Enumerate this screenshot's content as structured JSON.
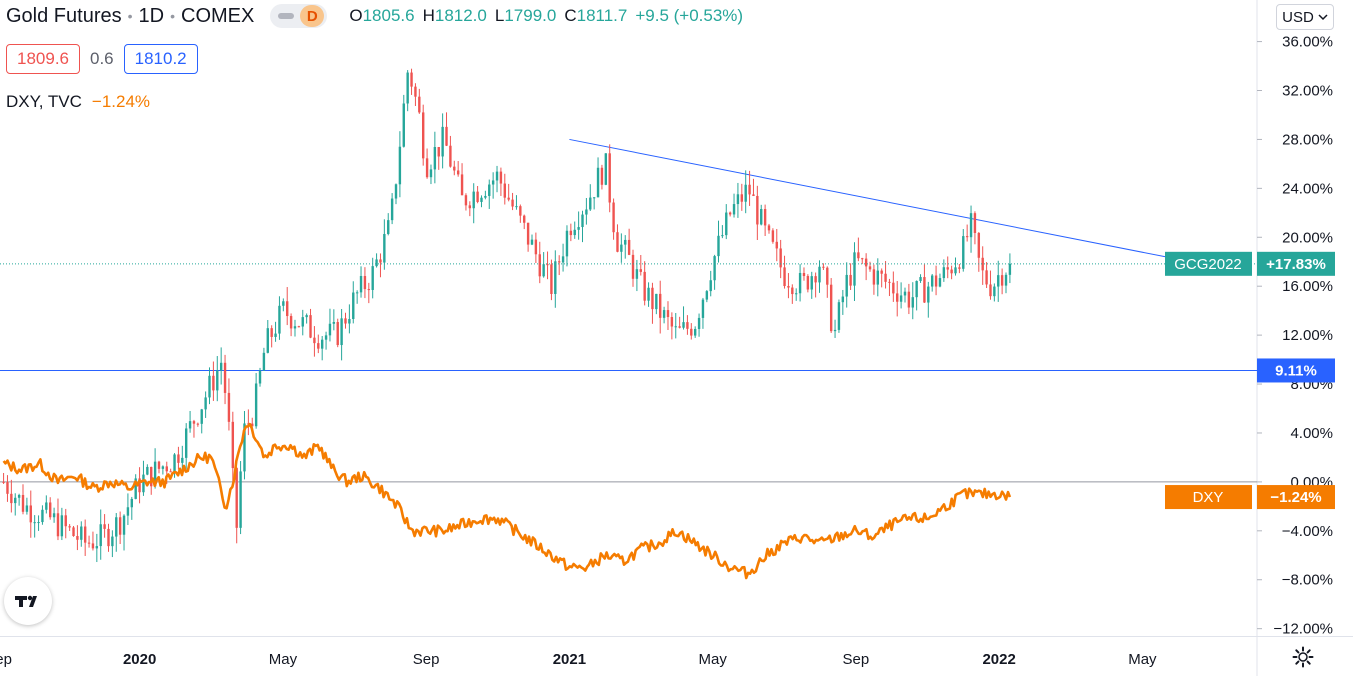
{
  "header": {
    "symbol_title": "Gold Futures",
    "interval": "1D",
    "exchange": "COMEX",
    "badge": "D",
    "ohlc": {
      "o_label": "O",
      "o": "1805.6",
      "h_label": "H",
      "h": "1812.0",
      "l_label": "L",
      "l": "1799.0",
      "c_label": "C",
      "c": "1811.7",
      "change": "+9.5 (+0.53%)"
    }
  },
  "bid_ask": {
    "sell": "1809.6",
    "spread": "0.6",
    "buy": "1810.2"
  },
  "compare": {
    "symbol": "DXY, TVC",
    "change": "−1.24%"
  },
  "currency_button": "USD",
  "logo_icon": "tradingview-logo-icon",
  "settings_icon": "gear-icon",
  "chart_data": {
    "type": "line",
    "y_axis": {
      "unit": "percent",
      "ticks": [
        "36.00%",
        "32.00%",
        "28.00%",
        "24.00%",
        "20.00%",
        "16.00%",
        "12.00%",
        "8.00%",
        "4.00%",
        "0.00%",
        "−4.00%",
        "−8.00%",
        "−12.00%"
      ],
      "tick_values": [
        36,
        32,
        28,
        24,
        20,
        16,
        12,
        8,
        4,
        0,
        -4,
        -8,
        -12
      ],
      "range": [
        -12.6,
        39.4
      ]
    },
    "x_axis": {
      "ticks": [
        "ep",
        "2020",
        "May",
        "Sep",
        "2021",
        "May",
        "Sep",
        "2022",
        "May"
      ],
      "tick_months": [
        -3.8,
        0,
        4,
        8,
        12,
        16,
        20,
        24,
        28
      ],
      "range": [
        -3.9,
        31.2
      ],
      "bold_ticks": [
        "2020",
        "2021",
        "2022"
      ]
    },
    "series": [
      {
        "name": "GCG2022",
        "style": "candles",
        "color_up": "#26a69a",
        "color_down": "#ef5350",
        "last_label": "+17.83%",
        "last_value": 17.83,
        "points": [
          [
            -3.8,
            0
          ],
          [
            -3.2,
            -2
          ],
          [
            -2.5,
            -3
          ],
          [
            -2.0,
            -4
          ],
          [
            -1.5,
            -5
          ],
          [
            -1.0,
            -4.5
          ],
          [
            -0.5,
            -3
          ],
          [
            0,
            0
          ],
          [
            0.5,
            1
          ],
          [
            1.0,
            2
          ],
          [
            1.5,
            5
          ],
          [
            2.0,
            8
          ],
          [
            2.3,
            10
          ],
          [
            2.5,
            4
          ],
          [
            2.7,
            -4
          ],
          [
            2.9,
            4
          ],
          [
            3.2,
            6
          ],
          [
            3.5,
            11
          ],
          [
            4.0,
            14
          ],
          [
            4.5,
            13
          ],
          [
            5.0,
            12
          ],
          [
            5.5,
            12
          ],
          [
            6.0,
            15
          ],
          [
            6.5,
            17
          ],
          [
            7.0,
            21
          ],
          [
            7.2,
            26
          ],
          [
            7.5,
            34
          ],
          [
            7.8,
            30
          ],
          [
            8.0,
            26
          ],
          [
            8.5,
            28
          ],
          [
            9.0,
            23
          ],
          [
            9.5,
            24
          ],
          [
            10.0,
            25
          ],
          [
            10.5,
            22
          ],
          [
            11.0,
            19
          ],
          [
            11.5,
            16
          ],
          [
            12.0,
            21
          ],
          [
            12.5,
            23
          ],
          [
            13.0,
            26
          ],
          [
            13.3,
            20
          ],
          [
            13.7,
            18
          ],
          [
            14.0,
            16
          ],
          [
            14.5,
            14
          ],
          [
            15.0,
            12
          ],
          [
            15.5,
            13
          ],
          [
            16.0,
            18
          ],
          [
            16.5,
            22
          ],
          [
            17.0,
            24
          ],
          [
            17.5,
            20
          ],
          [
            18.0,
            17
          ],
          [
            18.5,
            16
          ],
          [
            19.0,
            18
          ],
          [
            19.4,
            12
          ],
          [
            19.7,
            16
          ],
          [
            20.0,
            18
          ],
          [
            20.5,
            17
          ],
          [
            21.0,
            16
          ],
          [
            21.5,
            15
          ],
          [
            22.0,
            16
          ],
          [
            22.5,
            17
          ],
          [
            23.0,
            19
          ],
          [
            23.2,
            21
          ],
          [
            23.5,
            17
          ],
          [
            23.8,
            16
          ],
          [
            24.0,
            17
          ],
          [
            24.3,
            17.83
          ]
        ]
      },
      {
        "name": "DXY",
        "style": "line",
        "color": "#f57c00",
        "last_label": "−1.24%",
        "last_value": -1.24,
        "points": [
          [
            -3.8,
            1.5
          ],
          [
            -3.3,
            1.0
          ],
          [
            -2.8,
            1.5
          ],
          [
            -2.3,
            0
          ],
          [
            -1.8,
            0.5
          ],
          [
            -1.3,
            -0.5
          ],
          [
            -0.8,
            0
          ],
          [
            -0.3,
            -0.5
          ],
          [
            0.2,
            0
          ],
          [
            0.7,
            0
          ],
          [
            1.2,
            1
          ],
          [
            1.7,
            2
          ],
          [
            2.0,
            2
          ],
          [
            2.2,
            0
          ],
          [
            2.4,
            -2
          ],
          [
            2.6,
            0
          ],
          [
            2.8,
            3
          ],
          [
            3.0,
            5
          ],
          [
            3.2,
            4
          ],
          [
            3.5,
            2
          ],
          [
            3.8,
            3
          ],
          [
            4.2,
            3
          ],
          [
            4.6,
            2
          ],
          [
            5.0,
            3
          ],
          [
            5.4,
            1
          ],
          [
            5.8,
            0
          ],
          [
            6.2,
            0.5
          ],
          [
            6.7,
            -0.5
          ],
          [
            7.2,
            -2
          ],
          [
            7.6,
            -4
          ],
          [
            8.0,
            -4
          ],
          [
            8.5,
            -4
          ],
          [
            9.0,
            -3.5
          ],
          [
            9.5,
            -3
          ],
          [
            10.0,
            -3
          ],
          [
            10.5,
            -4
          ],
          [
            11.0,
            -5
          ],
          [
            11.5,
            -6
          ],
          [
            12.0,
            -7
          ],
          [
            12.5,
            -7
          ],
          [
            13.0,
            -6
          ],
          [
            13.5,
            -6.5
          ],
          [
            14.0,
            -5.5
          ],
          [
            14.5,
            -5
          ],
          [
            15.0,
            -4
          ],
          [
            15.5,
            -5
          ],
          [
            16.0,
            -6
          ],
          [
            16.5,
            -7
          ],
          [
            17.0,
            -7.5
          ],
          [
            17.5,
            -6
          ],
          [
            18.0,
            -5
          ],
          [
            18.5,
            -4.5
          ],
          [
            19.0,
            -5
          ],
          [
            19.5,
            -4.5
          ],
          [
            20.0,
            -4
          ],
          [
            20.5,
            -4.5
          ],
          [
            21.0,
            -3.5
          ],
          [
            21.5,
            -3
          ],
          [
            22.0,
            -3
          ],
          [
            22.5,
            -2
          ],
          [
            23.0,
            -1
          ],
          [
            23.5,
            -1
          ],
          [
            24.0,
            -1
          ],
          [
            24.3,
            -1.24
          ]
        ]
      }
    ],
    "trendline": {
      "from": [
        12.0,
        28.0
      ],
      "to": [
        29.0,
        18.2
      ],
      "color": "#2962ff"
    },
    "horizontal_line": {
      "value": 9.11,
      "label": "9.11%",
      "color": "#2962ff"
    },
    "last_price_label": {
      "name": "GCG2022",
      "value_label": "+17.83%"
    },
    "compare_label": {
      "name": "DXY",
      "value_label": "−1.24%"
    },
    "grid": false
  }
}
